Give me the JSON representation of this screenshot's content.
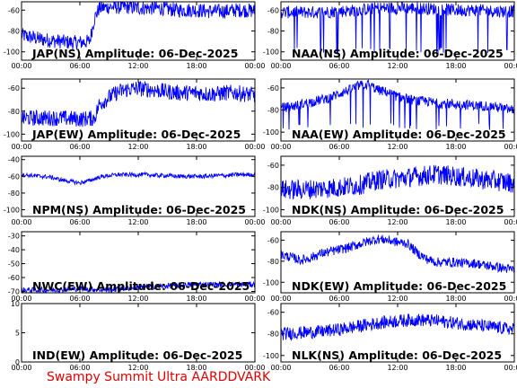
{
  "footer": {
    "text": "Swampy Summit Ultra AARDDVARK",
    "color": "#e00000"
  },
  "series_color": "#0000ff",
  "chart_data": [
    {
      "type": "line",
      "title": "JAP(NS) Amplitude: 06-Dec-2025",
      "x_ticks": [
        "00:00",
        "06:00",
        "12:00",
        "18:00",
        "00:00"
      ],
      "y_ticks": [
        "-60",
        "-80",
        "-100"
      ],
      "ylim": [
        -108,
        -52
      ],
      "series": [
        {
          "x": [
            0,
            1,
            2,
            3,
            4,
            5,
            6,
            7,
            7.5,
            8,
            9,
            10,
            11,
            12,
            13,
            14,
            15,
            16,
            17,
            18,
            19,
            20,
            21,
            22,
            23,
            24
          ],
          "y": [
            -84,
            -86,
            -88,
            -89,
            -90,
            -91,
            -91,
            -90,
            -68,
            -58,
            -57,
            -57,
            -57,
            -58,
            -58,
            -58,
            -59,
            -60,
            -60,
            -60,
            -61,
            -61,
            -61,
            -60,
            -60,
            -61
          ],
          "spread": 14
        }
      ]
    },
    {
      "type": "line",
      "title": "NAA(NS) Amplitude: 06-Dec-2025",
      "x_ticks": [
        "00:00",
        "06:00",
        "12:00",
        "18:00",
        "00:00"
      ],
      "y_ticks": [
        "-60",
        "-80",
        "-100"
      ],
      "ylim": [
        -108,
        -52
      ],
      "series": [
        {
          "x": [
            0,
            2,
            4,
            6,
            8,
            10,
            12,
            14,
            16,
            18,
            20,
            22,
            24
          ],
          "y": [
            -62,
            -62,
            -62,
            -61,
            -60,
            -58,
            -58,
            -58,
            -59,
            -60,
            -60,
            -61,
            -61
          ],
          "spread": 12,
          "dropouts_to": -102
        }
      ]
    },
    {
      "type": "line",
      "title": "JAP(EW) Amplitude: 06-Dec-2025",
      "x_ticks": [
        "00:00",
        "06:00",
        "12:00",
        "18:00",
        "00:00"
      ],
      "y_ticks": [
        "-60",
        "-80",
        "-100"
      ],
      "ylim": [
        -106,
        -52
      ],
      "series": [
        {
          "x": [
            0,
            2,
            4,
            6,
            7.5,
            8,
            9,
            10,
            11,
            12,
            13,
            14,
            15,
            16,
            17,
            18,
            19,
            20,
            21,
            22,
            23,
            24
          ],
          "y": [
            -86,
            -86,
            -86,
            -87,
            -86,
            -74,
            -68,
            -63,
            -61,
            -60,
            -61,
            -62,
            -63,
            -64,
            -64,
            -64,
            -65,
            -65,
            -64,
            -64,
            -65,
            -66
          ],
          "spread": 14
        }
      ]
    },
    {
      "type": "line",
      "title": "NAA(EW) Amplitude: 06-Dec-2025",
      "x_ticks": [
        "00:00",
        "06:00",
        "12:00",
        "18:00",
        "00:00"
      ],
      "y_ticks": [
        "-60",
        "-80",
        "-100"
      ],
      "ylim": [
        -108,
        -52
      ],
      "series": [
        {
          "x": [
            0,
            1,
            2,
            3,
            4,
            5,
            6,
            7,
            8,
            9,
            10,
            11,
            12,
            13,
            14,
            15,
            16,
            17,
            18,
            19,
            20,
            21,
            22,
            23,
            24
          ],
          "y": [
            -78,
            -77,
            -75,
            -73,
            -71,
            -69,
            -65,
            -62,
            -58,
            -57,
            -62,
            -64,
            -68,
            -70,
            -72,
            -72,
            -74,
            -74,
            -75,
            -75,
            -76,
            -76,
            -77,
            -79,
            -80
          ],
          "spread": 9,
          "dropouts_to": -98
        }
      ]
    },
    {
      "type": "line",
      "title": "NPM(NS) Amplitude: 06-Dec-2025",
      "x_ticks": [
        "00:00",
        "06:00",
        "12:00",
        "18:00",
        "00:00"
      ],
      "y_ticks": [
        "-40",
        "-60",
        "-80",
        "-100"
      ],
      "ylim": [
        -108,
        -36
      ],
      "series": [
        {
          "x": [
            0,
            1,
            2,
            3,
            4,
            5,
            6,
            7,
            8,
            9,
            10,
            11,
            12,
            13,
            14,
            15,
            16,
            17,
            18,
            19,
            20,
            21,
            22,
            23,
            24
          ],
          "y": [
            -58,
            -59,
            -60,
            -61,
            -64,
            -66,
            -68,
            -65,
            -61,
            -59,
            -58,
            -58,
            -58,
            -58,
            -59,
            -59,
            -60,
            -60,
            -60,
            -60,
            -59,
            -59,
            -58,
            -58,
            -58
          ],
          "spread": 5
        }
      ]
    },
    {
      "type": "line",
      "title": "NDK(NS) Amplitude: 06-Dec-2025",
      "x_ticks": [
        "00:00",
        "06:00",
        "12:00",
        "18:00",
        "00:00"
      ],
      "y_ticks": [
        "-60",
        "-80",
        "-100"
      ],
      "ylim": [
        -106,
        -52
      ],
      "series": [
        {
          "x": [
            0,
            2,
            4,
            6,
            8,
            10,
            12,
            14,
            16,
            18,
            20,
            22,
            24
          ],
          "y": [
            -82,
            -82,
            -81,
            -80,
            -78,
            -73,
            -72,
            -70,
            -68,
            -70,
            -72,
            -74,
            -76
          ],
          "spread": 18
        }
      ]
    },
    {
      "type": "line",
      "title": "NWC(EW) Amplitude: 06-Dec-2025",
      "x_ticks": [
        "00:00",
        "06:00",
        "12:00",
        "18:00",
        "00:00"
      ],
      "y_ticks": [
        "-30",
        "-40",
        "-50",
        "-60",
        "-70"
      ],
      "ylim": [
        -71,
        -27
      ],
      "series": [
        {
          "x": [
            0,
            3,
            6,
            9,
            12,
            15,
            18,
            21,
            24
          ],
          "y": [
            -69,
            -69,
            -68,
            -69,
            -67,
            -66,
            -65,
            -65,
            -65
          ],
          "spread": 4
        }
      ]
    },
    {
      "type": "line",
      "title": "NDK(EW) Amplitude: 06-Dec-2025",
      "x_ticks": [
        "00:00",
        "06:00",
        "12:00",
        "18:00",
        "00:00"
      ],
      "y_ticks": [
        "-60",
        "-80",
        "-100"
      ],
      "ylim": [
        -110,
        -52
      ],
      "series": [
        {
          "x": [
            0,
            1,
            2,
            3,
            4,
            5,
            6,
            7,
            8,
            9,
            10,
            11,
            12,
            13,
            14,
            15,
            16,
            17,
            18,
            19,
            20,
            21,
            22,
            23,
            24
          ],
          "y": [
            -74,
            -76,
            -79,
            -77,
            -73,
            -71,
            -69,
            -67,
            -64,
            -61,
            -59,
            -60,
            -62,
            -63,
            -72,
            -78,
            -81,
            -81,
            -81,
            -82,
            -82,
            -84,
            -85,
            -87,
            -88
          ],
          "spread": 9
        }
      ]
    },
    {
      "type": "line",
      "title": "IND(EW) Amplitude: 06-Dec-2025",
      "x_ticks": [
        "00:00",
        "06:00",
        "12:00",
        "18:00",
        "00:00"
      ],
      "y_ticks": [
        "10",
        "5",
        "0"
      ],
      "ylim": [
        0,
        10
      ],
      "series": []
    },
    {
      "type": "line",
      "title": "NLK(NS) Amplitude: 06-Dec-2025",
      "x_ticks": [
        "00:00",
        "06:00",
        "12:00",
        "18:00",
        "00:00"
      ],
      "y_ticks": [
        "-60",
        "-80",
        "-100"
      ],
      "ylim": [
        -106,
        -52
      ],
      "series": [
        {
          "x": [
            0,
            2,
            4,
            6,
            8,
            10,
            12,
            14,
            16,
            18,
            20,
            22,
            24
          ],
          "y": [
            -80,
            -79,
            -78,
            -76,
            -73,
            -70,
            -68,
            -67,
            -68,
            -70,
            -72,
            -74,
            -76
          ],
          "spread": 12
        }
      ]
    }
  ]
}
